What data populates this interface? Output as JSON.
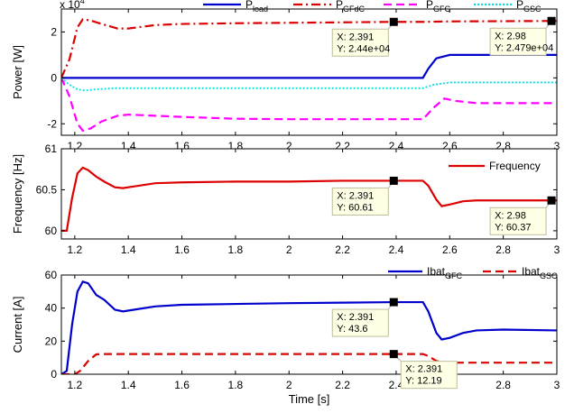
{
  "chart_data": [
    {
      "type": "line",
      "ylabel": "Power [W]",
      "exponent": "x 10",
      "exponent_power": "4",
      "xlim": [
        1.15,
        3.0
      ],
      "ylim": [
        -2.5,
        3.0
      ],
      "yticks": [
        "-2",
        "0",
        "2"
      ],
      "ytick_values": [
        -2,
        0,
        2
      ],
      "xticks": [
        "1.2",
        "1.4",
        "1.6",
        "1.8",
        "2",
        "2.2",
        "2.4",
        "2.6",
        "2.8",
        "3"
      ],
      "xtick_values": [
        1.2,
        1.4,
        1.6,
        1.8,
        2.0,
        2.2,
        2.4,
        2.6,
        2.8,
        3.0
      ],
      "legend": [
        {
          "main": "P",
          "sub": "load",
          "color": "#0000cc",
          "dash": "solid"
        },
        {
          "main": "P",
          "sub": "GFdC",
          "color": "#dd0000",
          "dash": "dashdot"
        },
        {
          "main": "P",
          "sub": "GFC",
          "color": "#ff00ff",
          "dash": "dashed"
        },
        {
          "main": "P",
          "sub": "GSC",
          "color": "#00e0e0",
          "dash": "dotted"
        }
      ],
      "series": [
        {
          "name": "P_load",
          "color": "#0000cc",
          "dash": "solid",
          "x": [
            1.15,
            2.5,
            2.52,
            2.55,
            2.6,
            3.0
          ],
          "y": [
            0,
            0,
            0.4,
            0.85,
            1.0,
            1.0
          ]
        },
        {
          "name": "P_GFdC",
          "color": "#dd0000",
          "dash": "dashdot",
          "x": [
            1.15,
            1.18,
            1.21,
            1.23,
            1.26,
            1.3,
            1.36,
            1.4,
            1.5,
            1.6,
            1.8,
            2.0,
            2.2,
            2.391,
            2.5,
            2.6,
            2.8,
            2.98,
            3.0
          ],
          "y": [
            0,
            0.8,
            2.2,
            2.55,
            2.5,
            2.35,
            2.15,
            2.15,
            2.3,
            2.35,
            2.38,
            2.4,
            2.42,
            2.44,
            2.44,
            2.46,
            2.47,
            2.479,
            2.48
          ]
        },
        {
          "name": "P_GFC",
          "color": "#ff00ff",
          "dash": "dashed",
          "x": [
            1.15,
            1.18,
            1.21,
            1.23,
            1.26,
            1.3,
            1.36,
            1.4,
            1.5,
            1.6,
            1.8,
            2.0,
            2.2,
            2.4,
            2.5,
            2.54,
            2.58,
            2.62,
            2.7,
            2.8,
            3.0
          ],
          "y": [
            0,
            -0.8,
            -2.0,
            -2.3,
            -2.2,
            -1.9,
            -1.65,
            -1.6,
            -1.65,
            -1.7,
            -1.78,
            -1.8,
            -1.8,
            -1.8,
            -1.8,
            -1.3,
            -0.9,
            -1.0,
            -1.1,
            -1.1,
            -1.1
          ]
        },
        {
          "name": "P_GSC",
          "color": "#00e0e0",
          "dash": "dotted",
          "x": [
            1.15,
            1.18,
            1.21,
            1.24,
            1.28,
            1.35,
            1.4,
            1.6,
            2.0,
            2.5,
            2.54,
            2.6,
            2.7,
            3.0
          ],
          "y": [
            0,
            -0.3,
            -0.5,
            -0.55,
            -0.5,
            -0.45,
            -0.45,
            -0.45,
            -0.45,
            -0.45,
            -0.3,
            -0.2,
            -0.2,
            -0.2
          ]
        }
      ],
      "datatips": [
        {
          "x": 2.391,
          "y": 2.44,
          "line1": "X: 2.391",
          "line2": "Y: 2.44e+04",
          "side": "left-below"
        },
        {
          "x": 2.98,
          "y": 2.479,
          "line1": "X: 2.98",
          "line2": "Y: 2.479e+04",
          "side": "left-below"
        }
      ]
    },
    {
      "type": "line",
      "ylabel": "Frequency [Hz]",
      "xlim": [
        1.15,
        3.0
      ],
      "ylim": [
        59.9,
        61.0
      ],
      "yticks": [
        "60",
        "60.5",
        "61"
      ],
      "ytick_values": [
        60,
        60.5,
        61
      ],
      "xticks": [
        "1.2",
        "1.4",
        "1.6",
        "1.8",
        "2",
        "2.2",
        "2.4",
        "2.6",
        "2.8",
        "3"
      ],
      "xtick_values": [
        1.2,
        1.4,
        1.6,
        1.8,
        2.0,
        2.2,
        2.4,
        2.6,
        2.8,
        3.0
      ],
      "legend": [
        {
          "main": "Frequency",
          "sub": "",
          "color": "#dd0000",
          "dash": "solid"
        }
      ],
      "series": [
        {
          "name": "Frequency",
          "color": "#dd0000",
          "dash": "solid",
          "x": [
            1.15,
            1.17,
            1.19,
            1.21,
            1.23,
            1.25,
            1.28,
            1.31,
            1.35,
            1.38,
            1.42,
            1.5,
            1.6,
            1.8,
            2.0,
            2.2,
            2.391,
            2.5,
            2.52,
            2.55,
            2.57,
            2.6,
            2.65,
            2.7,
            2.8,
            2.98,
            3.0
          ],
          "y": [
            60.0,
            60.0,
            60.4,
            60.7,
            60.77,
            60.74,
            60.66,
            60.6,
            60.53,
            60.52,
            60.54,
            60.58,
            60.59,
            60.6,
            60.6,
            60.61,
            60.61,
            60.61,
            60.55,
            60.38,
            60.3,
            60.32,
            60.36,
            60.37,
            60.37,
            60.37,
            60.37
          ]
        }
      ],
      "datatips": [
        {
          "x": 2.391,
          "y": 60.61,
          "line1": "X: 2.391",
          "line2": "Y: 60.61",
          "side": "left-below"
        },
        {
          "x": 2.98,
          "y": 60.37,
          "line1": "X: 2.98",
          "line2": "Y: 60.37",
          "side": "left-below"
        }
      ]
    },
    {
      "type": "line",
      "ylabel": "Current [A]",
      "xlabel": "Time [s]",
      "xlim": [
        1.15,
        3.0
      ],
      "ylim": [
        0,
        60
      ],
      "yticks": [
        "0",
        "20",
        "40",
        "60"
      ],
      "ytick_values": [
        0,
        20,
        40,
        60
      ],
      "xticks": [
        "1.2",
        "1.4",
        "1.6",
        "1.8",
        "2",
        "2.2",
        "2.4",
        "2.6",
        "2.8",
        "3"
      ],
      "xtick_values": [
        1.2,
        1.4,
        1.6,
        1.8,
        2.0,
        2.2,
        2.4,
        2.6,
        2.8,
        3.0
      ],
      "legend": [
        {
          "main": "Ibat",
          "sub": "GFC",
          "color": "#0000cc",
          "dash": "solid"
        },
        {
          "main": "Ibat",
          "sub": "GSC",
          "color": "#dd0000",
          "dash": "dashed"
        }
      ],
      "series": [
        {
          "name": "Ibat_GFC",
          "color": "#0000cc",
          "dash": "solid",
          "x": [
            1.15,
            1.17,
            1.19,
            1.21,
            1.23,
            1.25,
            1.28,
            1.31,
            1.35,
            1.38,
            1.42,
            1.5,
            1.6,
            1.8,
            2.0,
            2.2,
            2.391,
            2.5,
            2.52,
            2.55,
            2.57,
            2.6,
            2.65,
            2.7,
            2.8,
            3.0
          ],
          "y": [
            0,
            2,
            30,
            50,
            56,
            55,
            48,
            45,
            39,
            38,
            39,
            41,
            42,
            42.5,
            43,
            43.3,
            43.6,
            43.6,
            38,
            25,
            21,
            22,
            25,
            26.5,
            27,
            26.5
          ]
        },
        {
          "name": "Ibat_GSC",
          "color": "#dd0000",
          "dash": "dashed",
          "x": [
            1.15,
            1.2,
            1.22,
            1.25,
            1.28,
            1.3,
            1.4,
            1.6,
            2.0,
            2.391,
            2.5,
            2.52,
            2.55,
            2.58,
            2.7,
            2.8,
            3.0
          ],
          "y": [
            0,
            0,
            2,
            8,
            12,
            12.2,
            12.2,
            12.2,
            12.2,
            12.19,
            12.19,
            11,
            8,
            7,
            7,
            7,
            7
          ]
        }
      ],
      "datatips": [
        {
          "x": 2.391,
          "y": 43.6,
          "line1": "X: 2.391",
          "line2": "Y: 43.6",
          "side": "left-below"
        },
        {
          "x": 2.391,
          "y": 12.19,
          "line1": "X: 2.391",
          "line2": "Y: 12.19",
          "side": "right-below"
        }
      ]
    }
  ]
}
